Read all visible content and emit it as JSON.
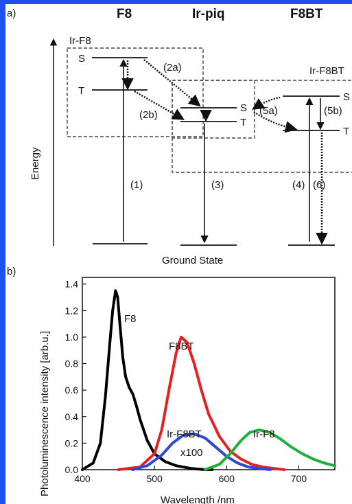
{
  "panel_a": {
    "label": "a)",
    "headers": [
      "F8",
      "Ir-piq",
      "F8BT"
    ],
    "y_axis_label": "Energy",
    "box_ir_f8": "Ir-F8",
    "box_ir_f8bt": "Ir-F8BT",
    "level_labels": {
      "s_left": "S",
      "t_left": "T",
      "s_mid": "S",
      "t_mid": "T",
      "s_right": "S",
      "t_right": "T"
    },
    "transitions": {
      "t1": "(1)",
      "t2a": "(2a)",
      "t2b": "(2b)",
      "t3": "(3)",
      "t4": "(4)",
      "t5a": "(5a)",
      "t5b": "(5b)",
      "t6": "(6)"
    },
    "ground_state": "Ground State"
  },
  "panel_b": {
    "label": "b)",
    "annotations": {
      "f8": "F8",
      "f8bt": "F8BT",
      "ir_f8bt": "Ir-F8BT",
      "x100": "x100",
      "ir_f8": "Ir-F8"
    }
  },
  "chart_data": {
    "type": "line",
    "xlabel": "Wavelength /nm",
    "ylabel": "Photoluminescence intensity [arb.u.]",
    "xlim": [
      400,
      750
    ],
    "ylim": [
      0,
      1.45
    ],
    "xticks": [
      400,
      500,
      600,
      700
    ],
    "yticks": [
      0.0,
      0.2,
      0.4,
      0.6,
      0.8,
      1.0,
      1.2,
      1.4
    ],
    "grid": false,
    "series": [
      {
        "name": "F8",
        "color": "#000000",
        "x": [
          400,
          415,
          425,
          432,
          438,
          442,
          446,
          449,
          452,
          456,
          460,
          465,
          470,
          475,
          480,
          490,
          500,
          515,
          530,
          550,
          570,
          580
        ],
        "y": [
          0.0,
          0.05,
          0.2,
          0.55,
          0.95,
          1.2,
          1.35,
          1.3,
          1.1,
          0.85,
          0.7,
          0.62,
          0.57,
          0.48,
          0.38,
          0.22,
          0.12,
          0.06,
          0.03,
          0.01,
          0.0,
          0.0
        ]
      },
      {
        "name": "F8BT",
        "color": "#e62020",
        "x": [
          450,
          480,
          500,
          510,
          520,
          530,
          537,
          545,
          555,
          565,
          575,
          590,
          605,
          620,
          635,
          650,
          665,
          680
        ],
        "y": [
          0.0,
          0.02,
          0.12,
          0.3,
          0.6,
          0.88,
          1.0,
          0.96,
          0.8,
          0.6,
          0.42,
          0.25,
          0.14,
          0.08,
          0.04,
          0.02,
          0.01,
          0.0
        ]
      },
      {
        "name": "Ir-F8BT",
        "color": "#2a49d8",
        "x": [
          470,
          490,
          510,
          525,
          540,
          555,
          570,
          585,
          600,
          615,
          630,
          645,
          660
        ],
        "y": [
          0.0,
          0.03,
          0.11,
          0.2,
          0.26,
          0.27,
          0.24,
          0.17,
          0.1,
          0.05,
          0.02,
          0.01,
          0.0
        ]
      },
      {
        "name": "Ir-F8",
        "color": "#1fae3a",
        "x": [
          570,
          590,
          605,
          620,
          632,
          645,
          660,
          675,
          690,
          705,
          720,
          735,
          750
        ],
        "y": [
          0.0,
          0.04,
          0.12,
          0.22,
          0.28,
          0.3,
          0.28,
          0.23,
          0.17,
          0.12,
          0.08,
          0.05,
          0.03
        ]
      }
    ]
  }
}
